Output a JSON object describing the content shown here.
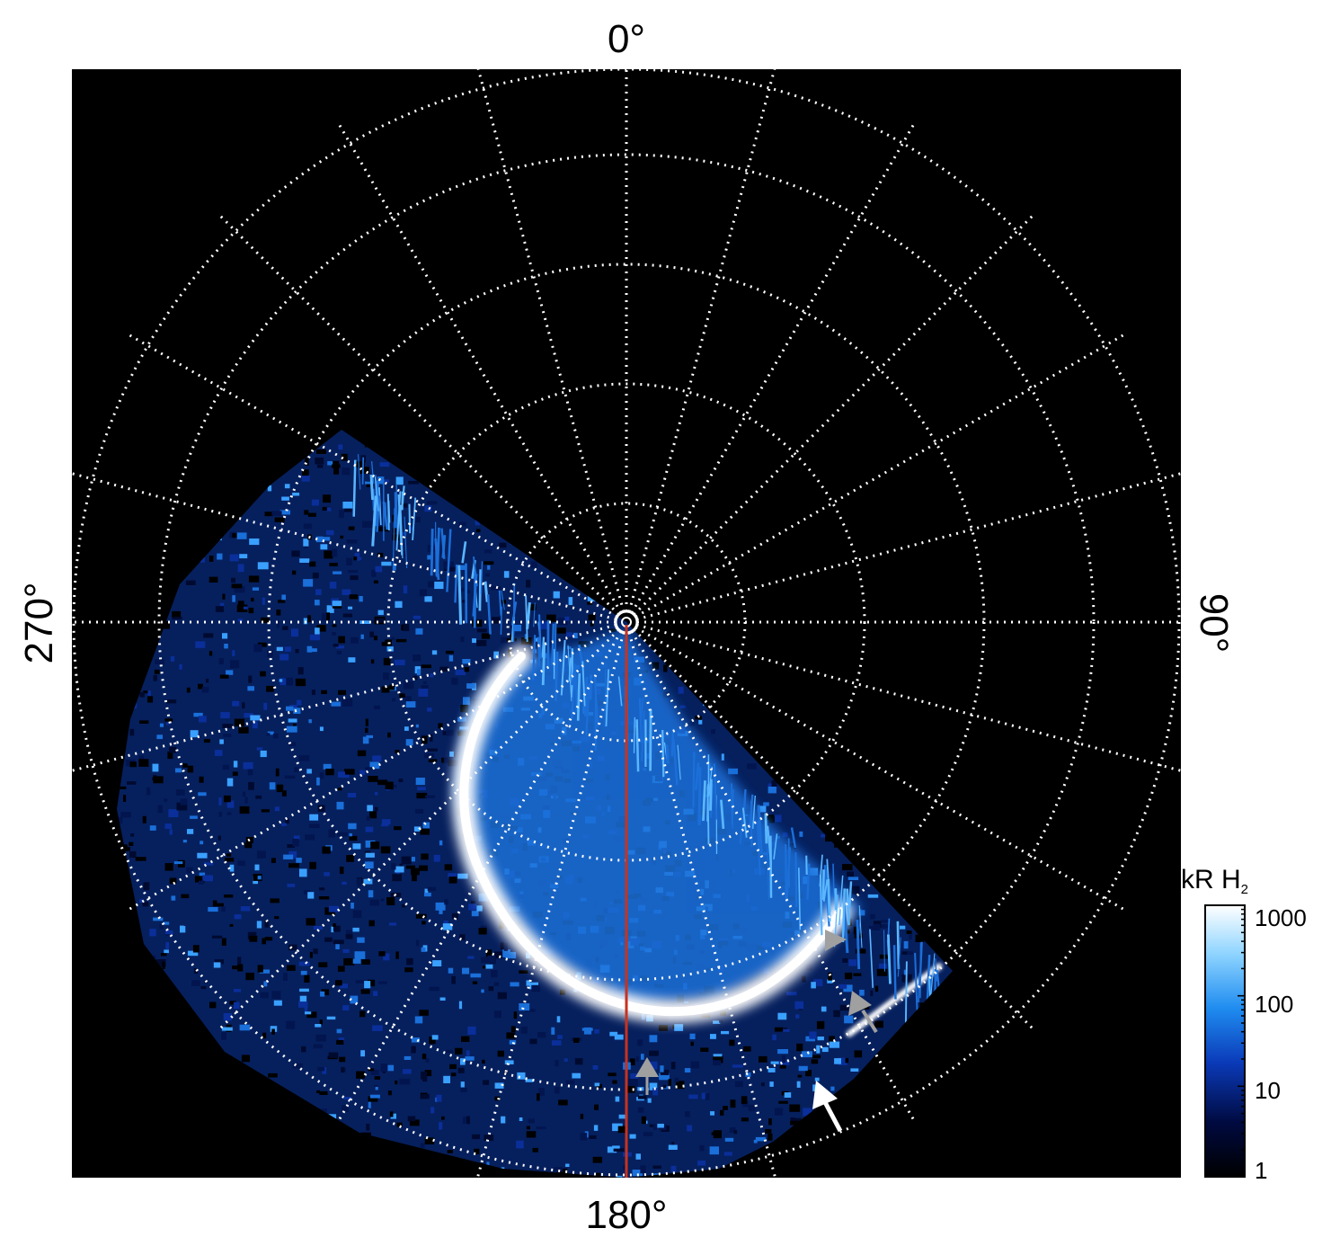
{
  "figure": {
    "longitude_labels": {
      "top": "0°",
      "right": "90°",
      "bottom": "180°",
      "left": "270°"
    },
    "colorbar": {
      "title_main": "kR H",
      "title_subscript": "2",
      "scale": "log",
      "range": [
        1,
        1000
      ],
      "tick_labels": [
        "1000",
        "100",
        "10",
        "1"
      ],
      "tick_values": [
        1000,
        100,
        10,
        1
      ],
      "colors": [
        "#000000",
        "#000a40",
        "#0a3ab8",
        "#1f8cf0",
        "#8ed4ff",
        "#ffffff"
      ]
    },
    "grid": {
      "style": "dotted",
      "color": "#ffffff",
      "rings": 5,
      "meridian_spacing_deg": 15
    },
    "meridian_line": {
      "color": "#c8321e"
    },
    "arrows": [
      {
        "color": "#a0a0a0",
        "direction": "up"
      },
      {
        "color": "#a0a0a0",
        "direction": "up-left"
      },
      {
        "color": "#a0a0a0",
        "direction": "right"
      },
      {
        "color": "#ffffff",
        "direction": "up-left"
      }
    ],
    "background_color": "#000000",
    "emission_colors": {
      "dark": "#001f7a",
      "mid": "#1c7fe6",
      "bright": "#ffffff"
    }
  }
}
